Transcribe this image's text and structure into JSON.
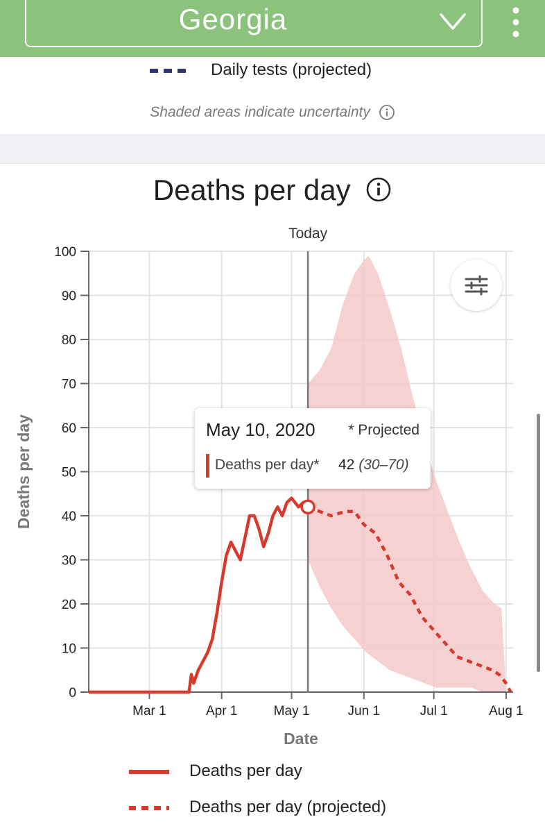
{
  "header": {
    "state": "Georgia",
    "bg_color": "#8bc27c",
    "dropdown_icon": "chevron-down-icon",
    "menu_icon": "kebab-menu-icon"
  },
  "tests_section": {
    "legend_label": "Daily tests (projected)",
    "legend_color": "#2e3a6e",
    "note": "Shaded areas indicate uncertainty",
    "note_icon": "info-icon"
  },
  "chart_data": {
    "type": "line",
    "title": "Deaths per day",
    "xlabel": "Date",
    "ylabel": "Deaths per day",
    "ylim": [
      0,
      100
    ],
    "y_ticks": [
      0,
      10,
      20,
      30,
      40,
      50,
      60,
      70,
      80,
      90,
      100
    ],
    "x_ticks": [
      "Mar 1",
      "Apr 1",
      "May 1",
      "Jun 1",
      "Jul 1",
      "Aug 1"
    ],
    "x_tick_dates": [
      "2020-03-01",
      "2020-04-01",
      "2020-05-01",
      "2020-06-01",
      "2020-07-01",
      "2020-08-01"
    ],
    "x_range": [
      "2020-02-04",
      "2020-08-04"
    ],
    "grid": true,
    "today_label": "Today",
    "today_date": "2020-05-08",
    "colors": {
      "line": "#d73a2d",
      "band": "#f5c9c9"
    },
    "series": [
      {
        "name": "Deaths per day",
        "style": "solid",
        "points": [
          [
            "2020-02-04",
            0
          ],
          [
            "2020-03-16",
            0
          ],
          [
            "2020-03-18",
            0
          ],
          [
            "2020-03-19",
            4
          ],
          [
            "2020-03-20",
            2
          ],
          [
            "2020-03-22",
            5
          ],
          [
            "2020-03-24",
            7
          ],
          [
            "2020-03-26",
            9
          ],
          [
            "2020-03-28",
            12
          ],
          [
            "2020-03-30",
            18
          ],
          [
            "2020-04-01",
            25
          ],
          [
            "2020-04-03",
            31
          ],
          [
            "2020-04-05",
            34
          ],
          [
            "2020-04-07",
            32
          ],
          [
            "2020-04-09",
            30
          ],
          [
            "2020-04-11",
            35
          ],
          [
            "2020-04-13",
            40
          ],
          [
            "2020-04-15",
            40
          ],
          [
            "2020-04-17",
            37
          ],
          [
            "2020-04-19",
            33
          ],
          [
            "2020-04-21",
            36
          ],
          [
            "2020-04-23",
            40
          ],
          [
            "2020-04-25",
            42
          ],
          [
            "2020-04-27",
            40
          ],
          [
            "2020-04-29",
            43
          ],
          [
            "2020-05-01",
            44
          ],
          [
            "2020-05-04",
            42
          ],
          [
            "2020-05-06",
            43
          ],
          [
            "2020-05-08",
            42
          ]
        ]
      },
      {
        "name": "Deaths per day (projected)",
        "style": "dashed",
        "points": [
          [
            "2020-05-08",
            42
          ],
          [
            "2020-05-13",
            41
          ],
          [
            "2020-05-18",
            40
          ],
          [
            "2020-05-24",
            41
          ],
          [
            "2020-05-28",
            41
          ],
          [
            "2020-06-01",
            38
          ],
          [
            "2020-06-06",
            36
          ],
          [
            "2020-06-11",
            31
          ],
          [
            "2020-06-16",
            25
          ],
          [
            "2020-06-21",
            22
          ],
          [
            "2020-06-26",
            17
          ],
          [
            "2020-07-01",
            14
          ],
          [
            "2020-07-06",
            11
          ],
          [
            "2020-07-11",
            8
          ],
          [
            "2020-07-16",
            7
          ],
          [
            "2020-07-21",
            6
          ],
          [
            "2020-07-26",
            5
          ],
          [
            "2020-07-29",
            4
          ],
          [
            "2020-08-01",
            2
          ],
          [
            "2020-08-03",
            0
          ]
        ]
      }
    ],
    "uncertainty": {
      "upper": [
        [
          "2020-05-08",
          70
        ],
        [
          "2020-05-13",
          73
        ],
        [
          "2020-05-18",
          78
        ],
        [
          "2020-05-23",
          88
        ],
        [
          "2020-05-28",
          95
        ],
        [
          "2020-06-01",
          98
        ],
        [
          "2020-06-03",
          99
        ],
        [
          "2020-06-07",
          95
        ],
        [
          "2020-06-12",
          87
        ],
        [
          "2020-06-17",
          78
        ],
        [
          "2020-06-22",
          67
        ],
        [
          "2020-06-27",
          57
        ],
        [
          "2020-07-02",
          48
        ],
        [
          "2020-07-07",
          41
        ],
        [
          "2020-07-12",
          34
        ],
        [
          "2020-07-17",
          28
        ],
        [
          "2020-07-22",
          23
        ],
        [
          "2020-07-27",
          20
        ],
        [
          "2020-07-30",
          19
        ],
        [
          "2020-08-01",
          0
        ]
      ],
      "lower": [
        [
          "2020-05-08",
          30
        ],
        [
          "2020-05-13",
          24
        ],
        [
          "2020-05-18",
          19
        ],
        [
          "2020-05-23",
          15
        ],
        [
          "2020-05-28",
          12
        ],
        [
          "2020-06-02",
          9
        ],
        [
          "2020-06-07",
          7
        ],
        [
          "2020-06-12",
          5
        ],
        [
          "2020-06-17",
          4
        ],
        [
          "2020-06-22",
          3
        ],
        [
          "2020-06-27",
          2
        ],
        [
          "2020-07-02",
          1
        ],
        [
          "2020-07-07",
          1
        ],
        [
          "2020-07-12",
          1
        ],
        [
          "2020-07-17",
          1
        ],
        [
          "2020-07-22",
          0
        ],
        [
          "2020-08-01",
          0
        ]
      ]
    },
    "tooltip": {
      "date": "May 10, 2020",
      "projected_note": "* Projected",
      "label": "Deaths per day*",
      "value": "42",
      "range": "(30–70)"
    },
    "legend": [
      {
        "label": "Deaths per day",
        "style": "solid"
      },
      {
        "label": "Deaths per day (projected)",
        "style": "dashed"
      }
    ],
    "legend_position": "bottom"
  },
  "controls": {
    "filter_icon": "sliders-icon"
  }
}
